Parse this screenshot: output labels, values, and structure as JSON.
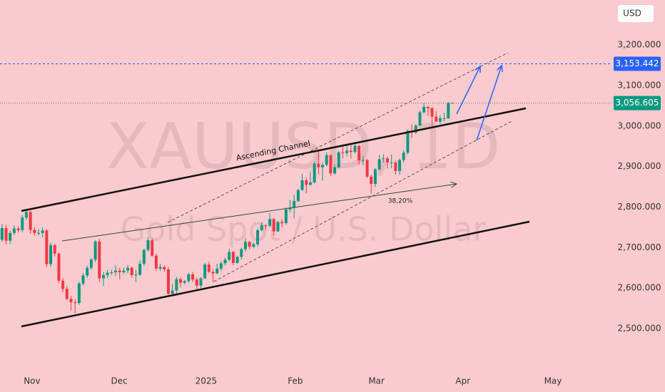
{
  "chart_data": {
    "type": "candlestick",
    "watermark": [
      "XAUUSD, 1D",
      "Gold Spot / U.S. Dollar"
    ],
    "currency": "USD",
    "annotations": [
      "Ascending Channel",
      "38,20%"
    ],
    "up_color": "#089981",
    "down_color": "#f23645",
    "open": [
      2719,
      2748,
      2717,
      2736,
      2747,
      2743,
      2774,
      2788,
      2743,
      2736,
      2736,
      2742,
      2659,
      2706,
      2685,
      2618,
      2598,
      2573,
      2565,
      2563,
      2611,
      2631,
      2650,
      2670,
      2715,
      2624,
      2632,
      2638,
      2639,
      2643,
      2639,
      2643,
      2650,
      2632,
      2633,
      2660,
      2694,
      2718,
      2680,
      2648,
      2652,
      2646,
      2586,
      2594,
      2622,
      2613,
      2617,
      2634,
      2621,
      2606,
      2624,
      2658,
      2640,
      2636,
      2648,
      2661,
      2670,
      2689,
      2662,
      2677,
      2696,
      2714,
      2702,
      2708,
      2743,
      2755,
      2754,
      2770,
      2740,
      2763,
      2760,
      2794,
      2798,
      2815,
      2842,
      2866,
      2855,
      2861,
      2907,
      2898,
      2904,
      2928,
      2883,
      2898,
      2935,
      2933,
      2939,
      2936,
      2951,
      2915,
      2916,
      2875,
      2857,
      2893,
      2918,
      2920,
      2910,
      2910,
      2889,
      2916,
      2934,
      2988,
      2984,
      3001,
      3034,
      3047,
      3044,
      3023,
      3011,
      3019,
      3019,
      3057
    ],
    "high": [
      2758,
      2756,
      2741,
      2755,
      2753,
      2781,
      2790,
      2790,
      2750,
      2745,
      2750,
      2746,
      2712,
      2709,
      2688,
      2625,
      2605,
      2580,
      2573,
      2615,
      2637,
      2655,
      2674,
      2718,
      2721,
      2640,
      2645,
      2645,
      2655,
      2650,
      2650,
      2657,
      2653,
      2645,
      2668,
      2697,
      2726,
      2722,
      2685,
      2660,
      2656,
      2652,
      2610,
      2628,
      2626,
      2620,
      2638,
      2640,
      2626,
      2627,
      2662,
      2665,
      2647,
      2660,
      2666,
      2675,
      2697,
      2692,
      2680,
      2700,
      2724,
      2716,
      2712,
      2746,
      2763,
      2757,
      2786,
      2772,
      2766,
      2770,
      2799,
      2817,
      2830,
      2845,
      2882,
      2872,
      2886,
      2911,
      2942,
      2910,
      2935,
      2929,
      2905,
      2938,
      2955,
      2955,
      2954,
      2956,
      2953,
      2926,
      2919,
      2880,
      2896,
      2928,
      2930,
      2925,
      2930,
      2915,
      2920,
      2940,
      2992,
      3004,
      3005,
      3038,
      3057,
      3050,
      3047,
      3037,
      3027,
      3033,
      3059,
      3058
    ],
    "low": [
      2714,
      2708,
      2709,
      2730,
      2737,
      2738,
      2768,
      2735,
      2729,
      2730,
      2725,
      2652,
      2652,
      2678,
      2612,
      2590,
      2570,
      2545,
      2537,
      2559,
      2606,
      2625,
      2645,
      2665,
      2615,
      2605,
      2625,
      2633,
      2630,
      2622,
      2635,
      2636,
      2625,
      2615,
      2630,
      2655,
      2690,
      2677,
      2642,
      2642,
      2640,
      2583,
      2580,
      2584,
      2602,
      2609,
      2613,
      2615,
      2597,
      2600,
      2622,
      2637,
      2615,
      2635,
      2642,
      2656,
      2666,
      2656,
      2660,
      2670,
      2690,
      2696,
      2698,
      2703,
      2740,
      2744,
      2750,
      2730,
      2738,
      2750,
      2756,
      2787,
      2772,
      2812,
      2840,
      2834,
      2853,
      2858,
      2881,
      2865,
      2900,
      2877,
      2880,
      2895,
      2920,
      2925,
      2920,
      2932,
      2905,
      2903,
      2872,
      2833,
      2850,
      2890,
      2910,
      2895,
      2896,
      2880,
      2880,
      2910,
      2930,
      2970,
      2980,
      3000,
      3030,
      3025,
      3000,
      3010,
      3005,
      3011,
      3017,
      3055
    ],
    "close": [
      2748,
      2717,
      2736,
      2747,
      2743,
      2774,
      2788,
      2743,
      2736,
      2736,
      2742,
      2659,
      2706,
      2685,
      2618,
      2598,
      2573,
      2565,
      2563,
      2611,
      2631,
      2650,
      2670,
      2715,
      2624,
      2632,
      2638,
      2639,
      2643,
      2639,
      2643,
      2650,
      2632,
      2633,
      2660,
      2694,
      2718,
      2680,
      2648,
      2652,
      2646,
      2586,
      2594,
      2622,
      2613,
      2617,
      2634,
      2621,
      2606,
      2624,
      2658,
      2640,
      2636,
      2648,
      2661,
      2670,
      2689,
      2662,
      2677,
      2696,
      2714,
      2702,
      2708,
      2743,
      2755,
      2754,
      2770,
      2740,
      2763,
      2760,
      2794,
      2798,
      2815,
      2842,
      2866,
      2855,
      2861,
      2907,
      2898,
      2904,
      2928,
      2883,
      2898,
      2935,
      2933,
      2939,
      2936,
      2951,
      2915,
      2916,
      2875,
      2857,
      2893,
      2918,
      2920,
      2910,
      2910,
      2889,
      2916,
      2934,
      2988,
      2984,
      3001,
      3034,
      3047,
      3044,
      3023,
      3011,
      3019,
      3019,
      3057,
      3056.605
    ],
    "xlim": [
      -0.5,
      150.4
    ],
    "xticks": [
      {
        "value": 7.4,
        "label": "Nov"
      },
      {
        "value": 28.9,
        "label": "Dec"
      },
      {
        "value": 50.3,
        "label": "2025"
      },
      {
        "value": 72.3,
        "label": "Feb"
      },
      {
        "value": 92.3,
        "label": "Mar"
      },
      {
        "value": 113.6,
        "label": "Apr"
      },
      {
        "value": 135.8,
        "label": "May"
      }
    ],
    "ylim": [
      2405,
      3311
    ],
    "yticks": [
      {
        "value": 2500,
        "label": "2,500.000"
      },
      {
        "value": 2600,
        "label": "2,600.000"
      },
      {
        "value": 2700,
        "label": "2,700.000"
      },
      {
        "value": 2800,
        "label": "2,800.000"
      },
      {
        "value": 2900,
        "label": "2,900.000"
      },
      {
        "value": 3000,
        "label": "3,000.000"
      },
      {
        "value": 3100,
        "label": "3,100.000"
      },
      {
        "value": 3200,
        "label": "3,200.000"
      }
    ],
    "price_lines": [
      {
        "value": 3153.442,
        "label": "3,153.442",
        "color": "#2962ff"
      },
      {
        "value": 3056.605,
        "label": "3,056.605",
        "color": "#089981"
      }
    ]
  }
}
